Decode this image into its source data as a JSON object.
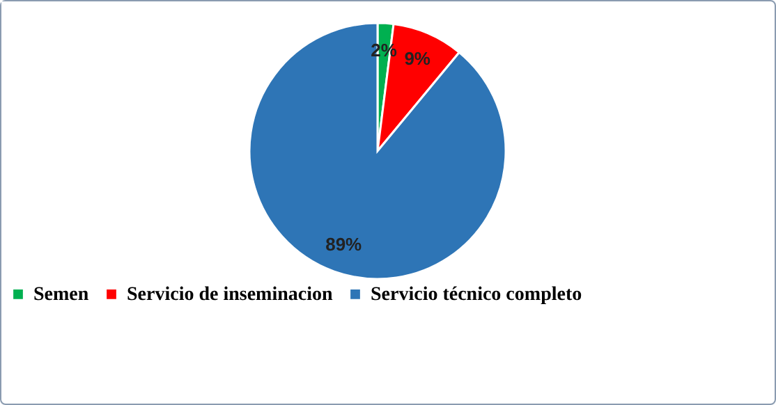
{
  "chart_data": {
    "type": "pie",
    "categories": [
      "Semen",
      "Servicio de inseminacion",
      "Servicio técnico completo"
    ],
    "values": [
      2,
      9,
      89
    ],
    "colors": [
      "#00b050",
      "#ff0000",
      "#2e75b6"
    ],
    "value_labels": [
      "2%",
      "9%",
      "89%"
    ],
    "legend": "bottom"
  }
}
